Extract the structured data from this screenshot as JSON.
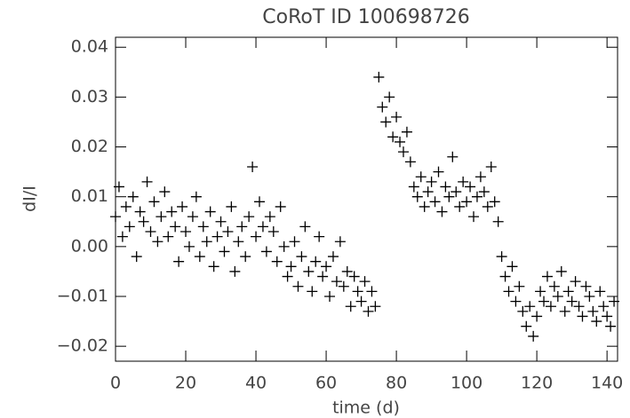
{
  "chart_data": {
    "type": "scatter",
    "title": "CoRoT ID 100698726",
    "x_label": "time (d)",
    "y_label": "dI/I",
    "color": "#000000",
    "marker": "plus",
    "xlim": [
      0,
      143
    ],
    "ylim": [
      -0.023,
      0.042
    ],
    "xticks": [
      0,
      20,
      40,
      60,
      80,
      100,
      120,
      140
    ],
    "yticks": [
      0.04,
      0.03,
      0.02,
      0.01,
      {
        "value": 0,
        "label": "0.00"
      },
      {
        "value": -0.01,
        "label": "−0.01"
      },
      {
        "value": -0.02,
        "label": "−0.02"
      }
    ],
    "x": [
      0,
      1,
      2,
      3,
      4,
      5,
      6,
      7,
      8,
      9,
      10,
      11,
      12,
      13,
      14,
      15,
      16,
      17,
      18,
      19,
      20,
      21,
      22,
      23,
      24,
      25,
      26,
      27,
      28,
      29,
      30,
      31,
      32,
      33,
      34,
      35,
      36,
      37,
      38,
      39,
      40,
      41,
      42,
      43,
      44,
      45,
      46,
      47,
      48,
      49,
      50,
      51,
      52,
      53,
      54,
      55,
      56,
      57,
      58,
      59,
      60,
      61,
      62,
      63,
      64,
      65,
      66,
      67,
      68,
      69,
      70,
      71,
      72,
      73,
      74,
      75,
      76,
      77,
      78,
      79,
      80,
      81,
      82,
      83,
      84,
      85,
      86,
      87,
      88,
      89,
      90,
      91,
      92,
      93,
      94,
      95,
      96,
      97,
      98,
      99,
      100,
      101,
      102,
      103,
      104,
      105,
      106,
      107,
      108,
      109,
      110,
      111,
      112,
      113,
      114,
      115,
      116,
      117,
      118,
      119,
      120,
      121,
      122,
      123,
      124,
      125,
      126,
      127,
      128,
      129,
      130,
      131,
      132,
      133,
      134,
      135,
      136,
      137,
      138,
      139,
      140,
      141,
      142
    ],
    "values": [
      0.006,
      0.012,
      0.002,
      0.008,
      0.004,
      0.01,
      -0.002,
      0.007,
      0.005,
      0.013,
      0.003,
      0.009,
      0.001,
      0.006,
      0.011,
      0.002,
      0.007,
      0.004,
      -0.003,
      0.008,
      0.003,
      0.0,
      0.006,
      0.01,
      -0.002,
      0.004,
      0.001,
      0.007,
      -0.004,
      0.002,
      0.005,
      -0.001,
      0.003,
      0.008,
      -0.005,
      0.001,
      0.004,
      -0.002,
      0.006,
      0.016,
      0.002,
      0.009,
      0.004,
      -0.001,
      0.006,
      0.003,
      -0.003,
      0.008,
      0.0,
      -0.006,
      -0.004,
      0.001,
      -0.008,
      -0.002,
      0.004,
      -0.005,
      -0.009,
      -0.003,
      0.002,
      -0.006,
      -0.004,
      -0.01,
      -0.002,
      -0.007,
      0.001,
      -0.008,
      -0.005,
      -0.012,
      -0.006,
      -0.009,
      -0.011,
      -0.007,
      -0.013,
      -0.009,
      -0.012,
      0.034,
      0.028,
      0.025,
      0.03,
      0.022,
      0.026,
      0.021,
      0.019,
      0.023,
      0.017,
      0.012,
      0.01,
      0.014,
      0.008,
      0.011,
      0.013,
      0.009,
      0.015,
      0.007,
      0.012,
      0.01,
      0.018,
      0.011,
      0.008,
      0.013,
      0.009,
      0.012,
      0.006,
      0.01,
      0.014,
      0.011,
      0.008,
      0.016,
      0.009,
      0.005,
      -0.002,
      -0.006,
      -0.009,
      -0.004,
      -0.011,
      -0.008,
      -0.013,
      -0.016,
      -0.012,
      -0.018,
      -0.014,
      -0.009,
      -0.011,
      -0.006,
      -0.012,
      -0.008,
      -0.01,
      -0.005,
      -0.013,
      -0.009,
      -0.011,
      -0.007,
      -0.012,
      -0.014,
      -0.008,
      -0.01,
      -0.013,
      -0.015,
      -0.009,
      -0.012,
      -0.014,
      -0.016,
      -0.011
    ]
  }
}
